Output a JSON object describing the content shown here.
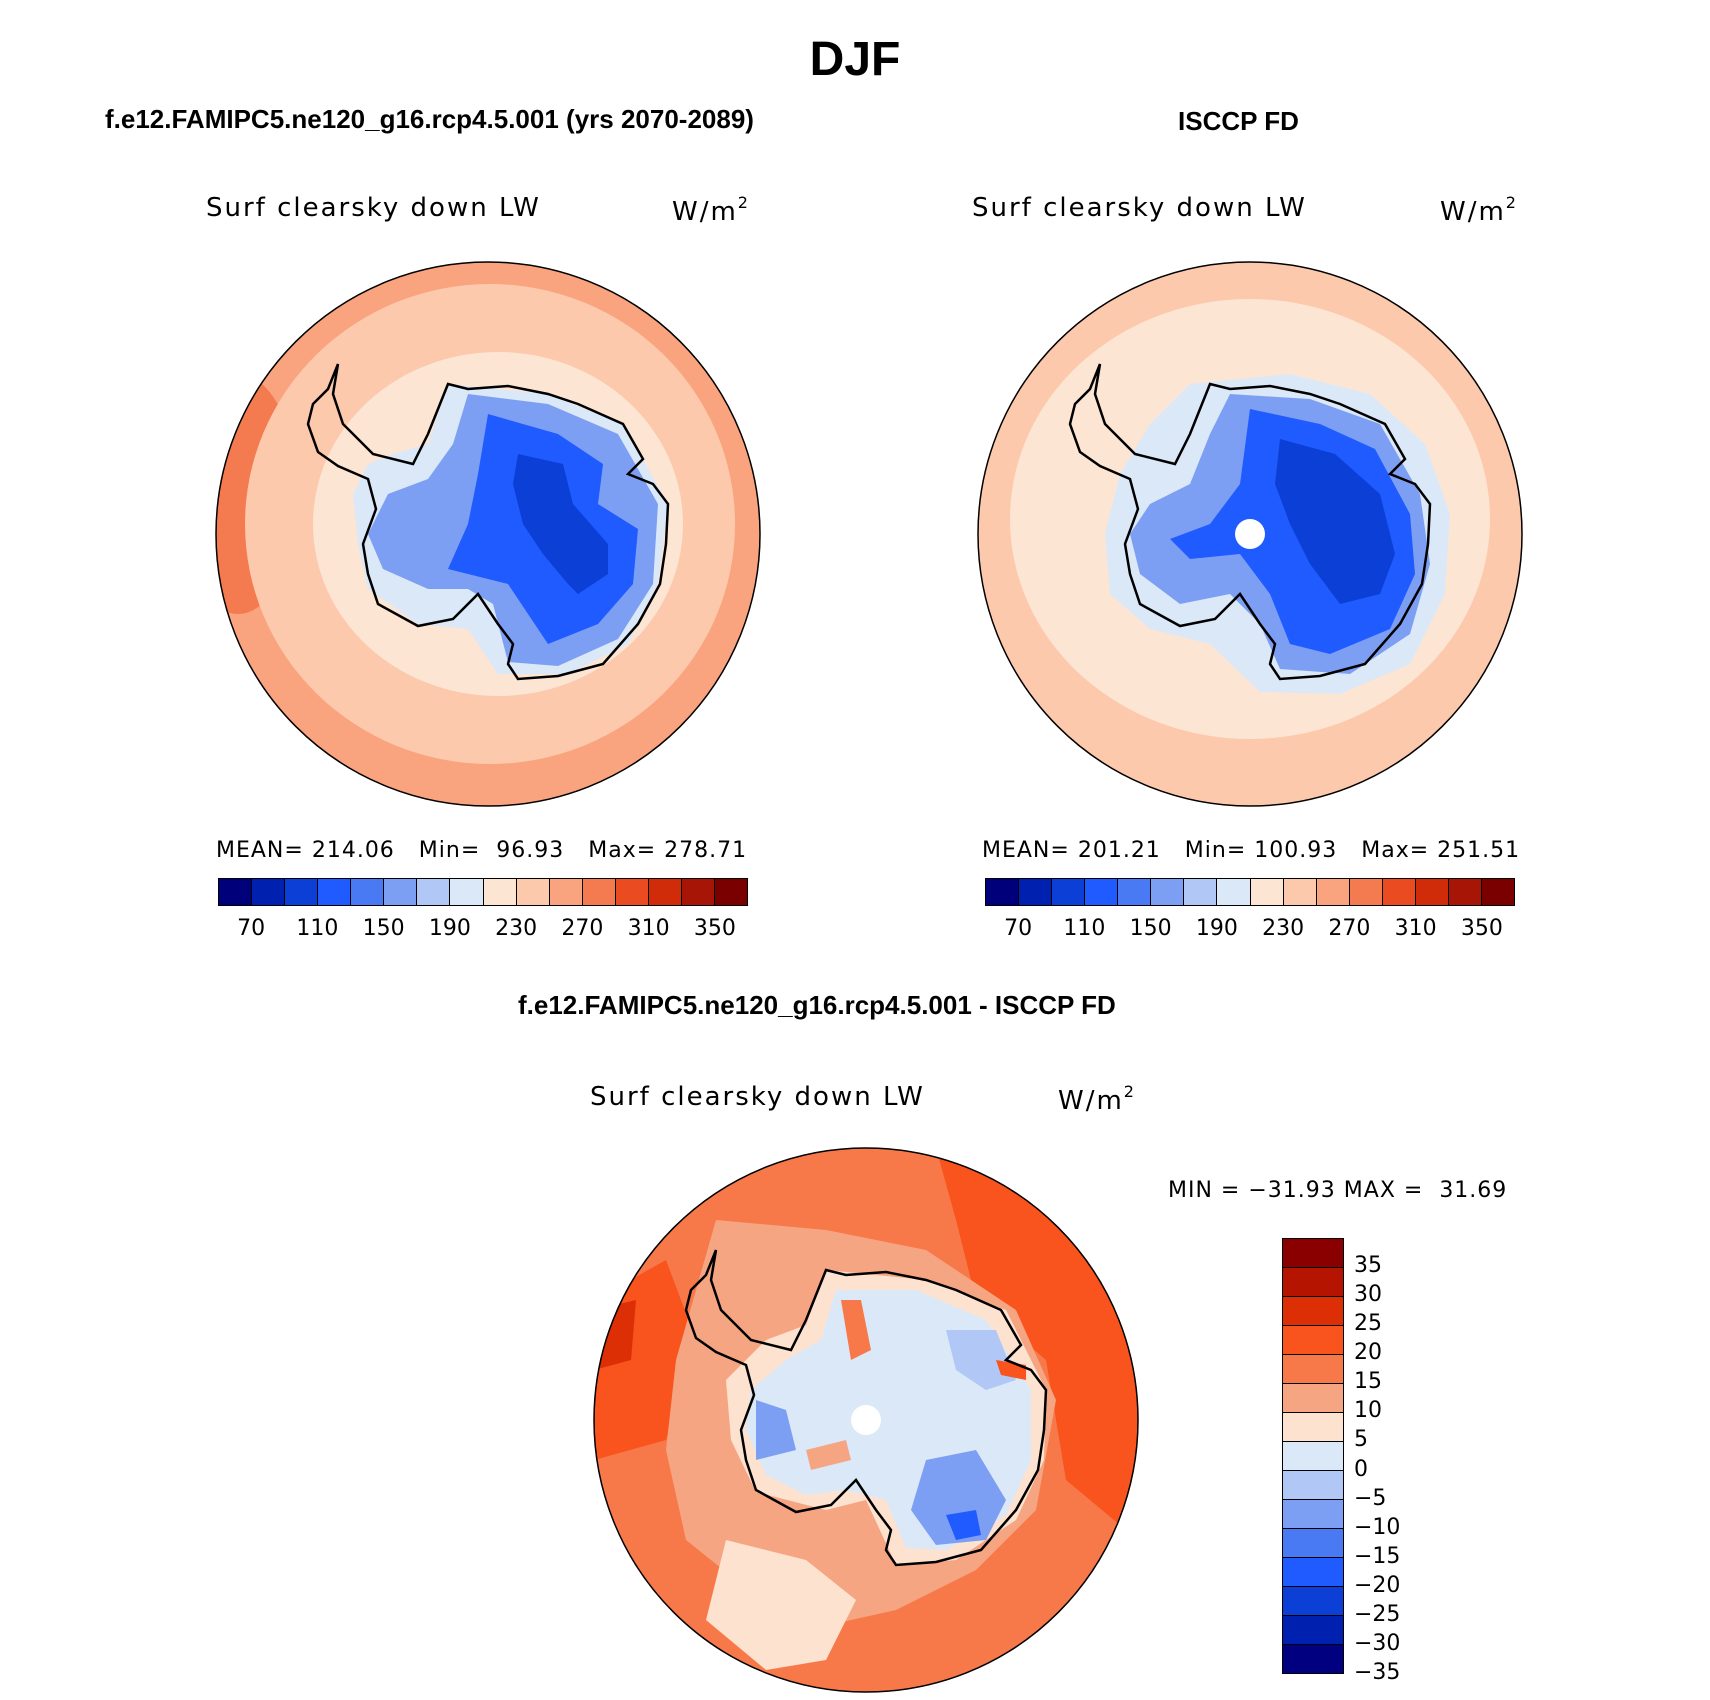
{
  "title": "DJF",
  "panels": {
    "model": {
      "title": "f.e12.FAMIPC5.ne120_g16.rcp4.5.001 (yrs 2070-2089)",
      "variable": "Surf clearsky down LW",
      "units_base": "W/m",
      "units_exp": "2",
      "stats": {
        "mean_label": "MEAN=",
        "mean": "214.06",
        "min_label": "Min=",
        "min": "96.93",
        "max_label": "Max=",
        "max": "278.71"
      }
    },
    "obs": {
      "title": "ISCCP FD",
      "variable": "Surf clearsky down LW",
      "units_base": "W/m",
      "units_exp": "2",
      "stats": {
        "mean_label": "MEAN=",
        "mean": "201.21",
        "min_label": "Min=",
        "min": "100.93",
        "max_label": "Max=",
        "max": "251.51"
      }
    },
    "diff": {
      "title": "f.e12.FAMIPC5.ne120_g16.rcp4.5.001 - ISCCP FD",
      "variable": "Surf clearsky down LW",
      "units_base": "W/m",
      "units_exp": "2",
      "stats": {
        "min_label": "MIN =",
        "min": "−31.93",
        "max_label": "MAX =",
        "max": "31.69"
      }
    }
  },
  "chart_data": [
    {
      "type": "heatmap",
      "projection": "south-polar-stereographic",
      "title": "f.e12.FAMIPC5.ne120_g16.rcp4.5.001 (yrs 2070-2089)",
      "variable": "Surf clearsky down LW",
      "units": "W/m2",
      "mean": 214.06,
      "min": 96.93,
      "max": 278.71,
      "colorbar_ticks": [
        "70",
        "110",
        "150",
        "190",
        "230",
        "270",
        "310",
        "350"
      ],
      "field_zones": {
        "interior": 110,
        "plateau": 150,
        "coast": 190,
        "inner_ocean": 230,
        "mid_ocean": 250,
        "outer_ocean": 270
      }
    },
    {
      "type": "heatmap",
      "projection": "south-polar-stereographic",
      "title": "ISCCP FD",
      "variable": "Surf clearsky down LW",
      "units": "W/m2",
      "mean": 201.21,
      "min": 100.93,
      "max": 251.51,
      "colorbar_ticks": [
        "70",
        "110",
        "150",
        "190",
        "230",
        "270",
        "310",
        "350"
      ],
      "field_zones": {
        "interior": 120,
        "plateau": 160,
        "coast": 190,
        "inner_ocean": 220,
        "mid_ocean": 235,
        "outer_ocean": 250
      }
    },
    {
      "type": "heatmap",
      "projection": "south-polar-stereographic",
      "title": "f.e12.FAMIPC5.ne120_g16.rcp4.5.001 - ISCCP FD",
      "variable": "Surf clearsky down LW",
      "units": "W/m2",
      "min": -31.93,
      "max": 31.69,
      "colorbar_ticks": [
        "35",
        "30",
        "25",
        "20",
        "15",
        "10",
        "5",
        "0",
        "−5",
        "−10",
        "−15",
        "−20",
        "−25",
        "−30",
        "−35"
      ]
    }
  ],
  "colors": {
    "seq": [
      "#00007a",
      "#0020b0",
      "#0b3fd6",
      "#1f5bff",
      "#4a7af3",
      "#7d9ff3",
      "#b1c8f6",
      "#dbe8f8",
      "#fde5d4",
      "#fcc9ac",
      "#f9a47f",
      "#f47a4f",
      "#eb4b20",
      "#d12c0a",
      "#a61505",
      "#7a0000"
    ],
    "div": [
      "#8a0000",
      "#b51400",
      "#dc2f06",
      "#f9531e",
      "#f7794a",
      "#f6a583",
      "#fde2cf",
      "#dbe8f8",
      "#b1c8f6",
      "#7d9ff3",
      "#4a7af3",
      "#1f5bff",
      "#0b3fd6",
      "#0020b0",
      "#000080"
    ]
  }
}
